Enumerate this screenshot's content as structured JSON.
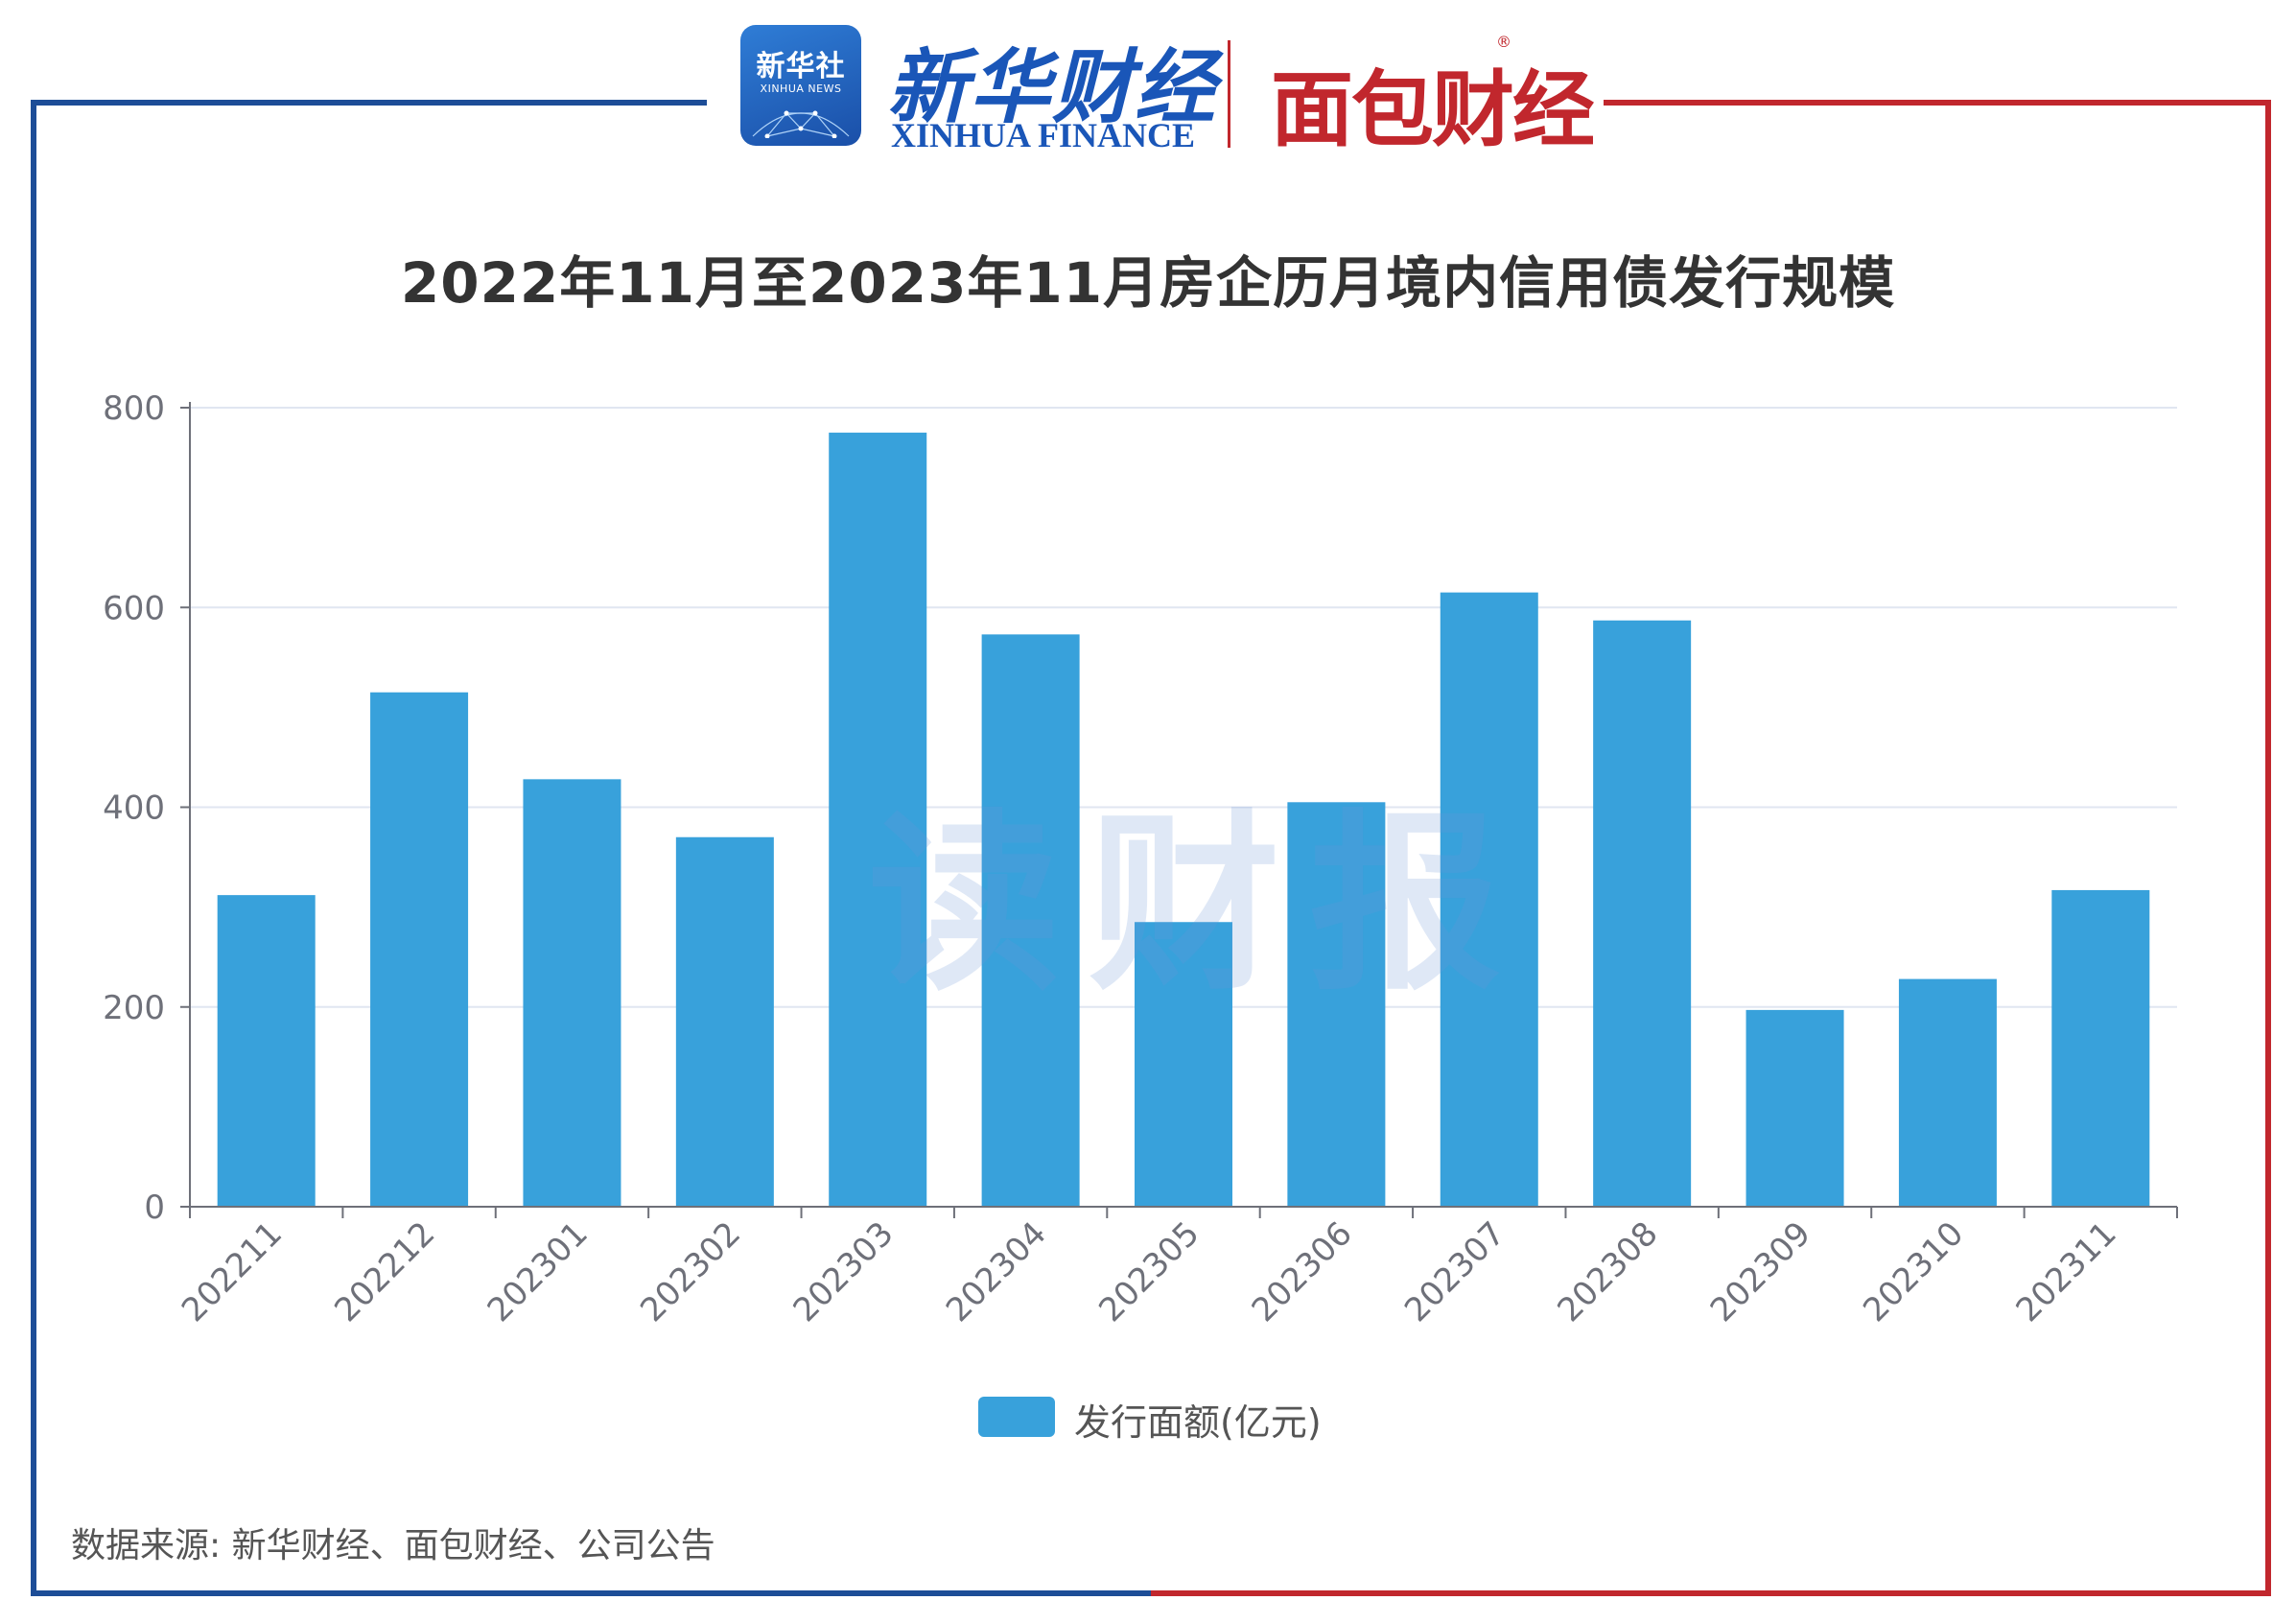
{
  "logos": {
    "xinhua_badge_main": "新华社",
    "xinhua_badge_sub": "XINHUA NEWS",
    "xinhua_finance_cn": "新华财经",
    "xinhua_finance_en": "XINHUA FINANCE",
    "mianbao": "面包财经",
    "reg_mark": "®"
  },
  "watermark": "读财报",
  "source_note": "数据来源: 新华财经、面包财经、公司公告",
  "colors": {
    "bar": "#38a1db",
    "axis": "#6e7079",
    "grid": "#e0e6f1",
    "tick_text": "#6e7079",
    "frame_left": "#1d4d97",
    "frame_right": "#c1272d"
  },
  "chart_data": {
    "type": "bar",
    "title": "2022年11月至2023年11月房企历月境内信用债发行规模",
    "categories": [
      "202211",
      "202212",
      "202301",
      "202302",
      "202303",
      "202304",
      "202305",
      "202306",
      "202307",
      "202308",
      "202309",
      "202310",
      "202311"
    ],
    "series": [
      {
        "name": "发行面额(亿元)",
        "values": [
          312,
          515,
          428,
          370,
          775,
          573,
          285,
          405,
          615,
          587,
          197,
          228,
          317
        ]
      }
    ],
    "xlabel": "",
    "ylabel": "",
    "ylim": [
      0,
      800
    ],
    "yticks": [
      0,
      200,
      400,
      600,
      800
    ],
    "grid": true,
    "legend": "bottom-center"
  }
}
